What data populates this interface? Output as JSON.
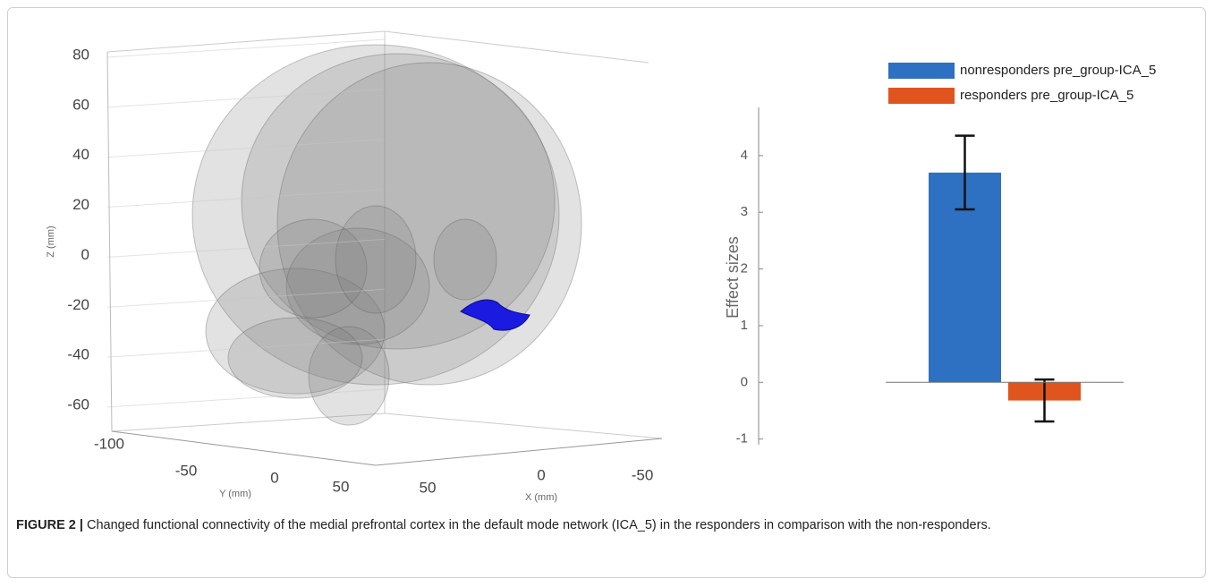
{
  "brain_view": {
    "zlabel": "Z (mm)",
    "zticks": [
      80,
      60,
      40,
      20,
      0,
      -20,
      -40,
      -60
    ],
    "ylabel": "Y (mm)",
    "yticks": [
      -100,
      -50,
      0,
      50
    ],
    "xlabel": "X (mm)",
    "xticks": [
      50,
      0,
      -50
    ]
  },
  "chart_data": {
    "type": "bar",
    "ylabel": "Effect sizes",
    "ylim": [
      -1.1,
      4.85
    ],
    "yticks": [
      -1,
      0,
      1,
      2,
      3,
      4
    ],
    "legend": "top",
    "series": [
      {
        "name": "nonresponders pre_group-ICA_5",
        "color": "#2e70c1",
        "values": [
          3.7
        ],
        "errors": [
          0.65
        ]
      },
      {
        "name": "responders pre_group-ICA_5",
        "color": "#e0541e",
        "values": [
          -0.32
        ],
        "errors": [
          0.37
        ]
      }
    ]
  },
  "caption": {
    "label": "FIGURE 2 |",
    "text": "Changed functional connectivity of the medial prefrontal cortex in the default mode network (ICA_5) in the responders in comparison with the non-responders."
  }
}
